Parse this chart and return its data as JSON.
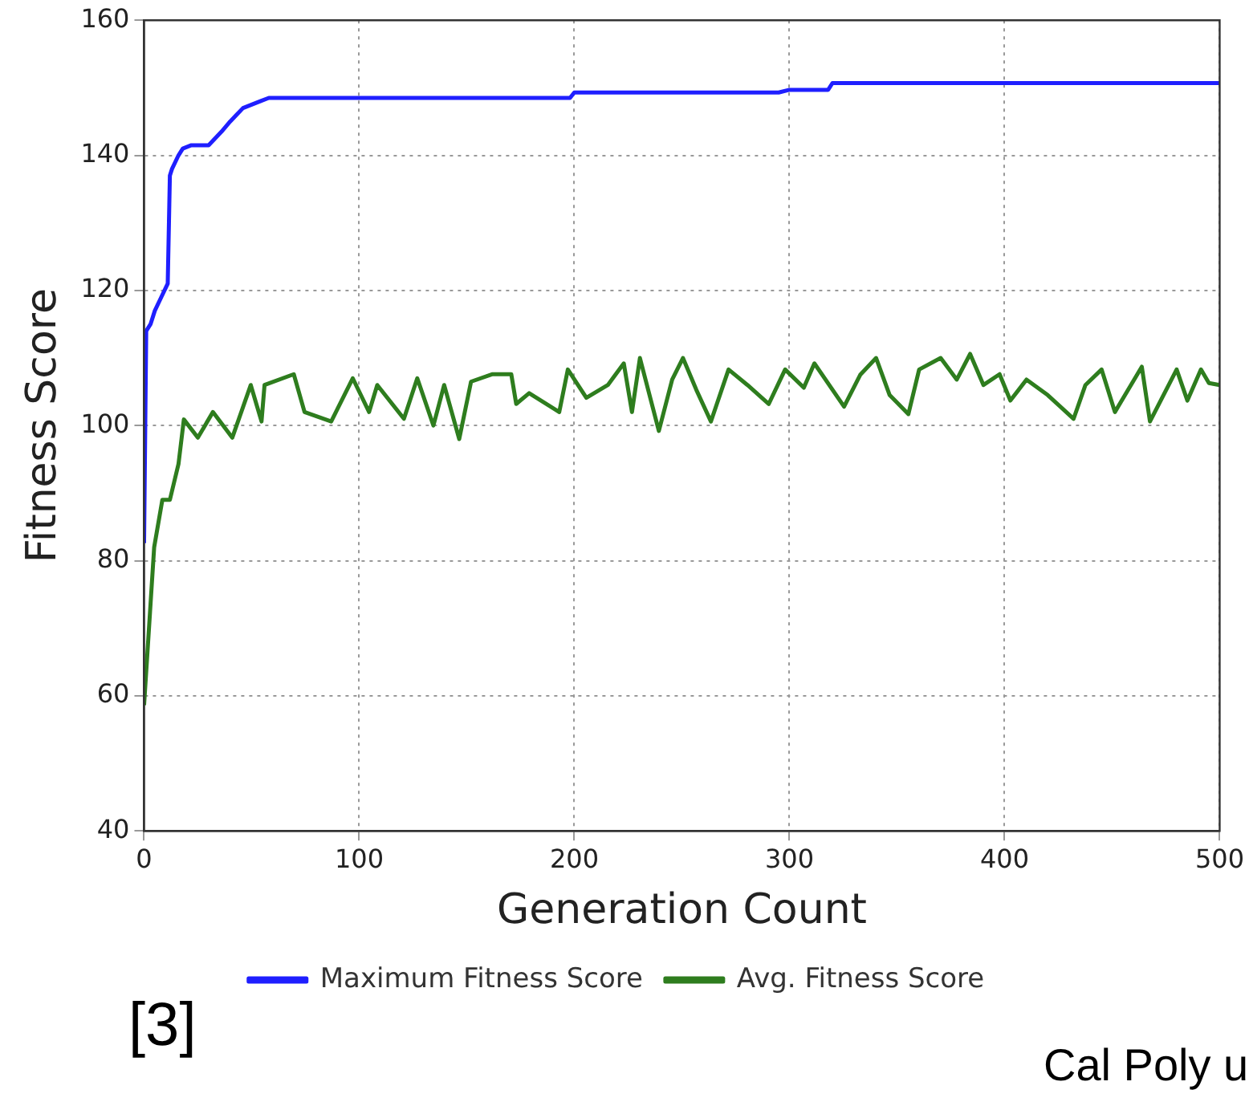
{
  "chart_data": {
    "type": "line",
    "xlabel": "Generation Count",
    "ylabel": "Fitness Score",
    "xlim": [
      0,
      500
    ],
    "ylim": [
      40,
      160
    ],
    "xticks": [
      0,
      100,
      200,
      300,
      400,
      500
    ],
    "yticks": [
      40,
      60,
      80,
      100,
      120,
      140,
      160
    ],
    "grid": true,
    "legend": "bottom",
    "marker": "none",
    "line_style": "solid",
    "annotations": [
      "[3]",
      "Cal Poly u"
    ],
    "series": [
      {
        "name": "Maximum Fitness Score",
        "color": "#1f1fff",
        "x": [
          0,
          1,
          3,
          5,
          8,
          11,
          12,
          13,
          16,
          18,
          22,
          30,
          33,
          36,
          40,
          43,
          46,
          50,
          54,
          58,
          60,
          198,
          200,
          295,
          300,
          318,
          320,
          500
        ],
        "values": [
          82.6,
          114,
          115,
          117,
          119,
          121,
          137,
          138,
          140,
          141,
          141.5,
          141.5,
          142.5,
          143.5,
          145,
          146,
          147,
          147.5,
          148,
          148.5,
          148.5,
          148.5,
          149.3,
          149.3,
          149.7,
          149.7,
          150.7,
          150.7
        ]
      },
      {
        "name": "Avg. Fitness Score",
        "color": "#2e7d1e",
        "x": [
          0,
          4.7,
          8.5,
          12,
          16,
          18.5,
          25,
          32,
          41,
          49.6,
          54.6,
          56,
          69.6,
          74.6,
          87,
          97,
          104.6,
          108.4,
          120.8,
          127,
          134.5,
          139.5,
          146.5,
          152,
          162,
          170.7,
          173,
          179,
          193,
          197,
          205.6,
          215.6,
          223,
          226.8,
          230.5,
          239.3,
          245.5,
          250.5,
          256.7,
          263.5,
          271.7,
          280.5,
          290.4,
          298,
          306.7,
          311.6,
          325.4,
          332.9,
          340.3,
          346.6,
          355.3,
          360.3,
          370.3,
          377.8,
          384,
          390.2,
          397.7,
          402.7,
          410.2,
          420.1,
          432.1,
          437.6,
          445.1,
          451.3,
          463.8,
          467.6,
          480,
          485,
          491.3,
          495,
          500
        ],
        "values": [
          58.6,
          82,
          89,
          89,
          94.3,
          100.9,
          98.2,
          102,
          98.2,
          106,
          100.6,
          106,
          107.6,
          102,
          100.6,
          107,
          102,
          106,
          101,
          107,
          100,
          106,
          98,
          106.5,
          107.6,
          107.6,
          103.2,
          104.8,
          102,
          108.3,
          104.1,
          106,
          109.2,
          102,
          110,
          99.2,
          106.8,
          110,
          105.3,
          100.6,
          108.3,
          106,
          103.2,
          108.3,
          105.6,
          109.2,
          102.8,
          107.5,
          110,
          104.5,
          101.7,
          108.3,
          110,
          106.8,
          110.6,
          106,
          107.6,
          103.7,
          106.8,
          104.5,
          101,
          106,
          108.3,
          102,
          108.7,
          100.6,
          108.3,
          103.7,
          108.3,
          106.3,
          106
        ]
      }
    ]
  }
}
